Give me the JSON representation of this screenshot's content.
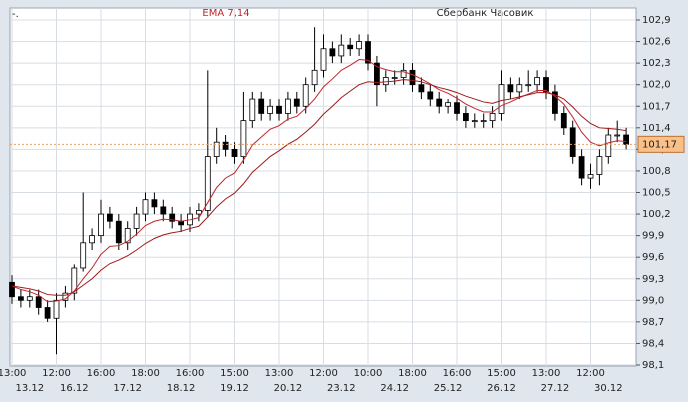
{
  "chart_data": {
    "type": "candlestick",
    "corner_text": "-.",
    "title": "EMA 7,14",
    "subtitle": "Сбербанк Часовик",
    "categories": [
      "13:00",
      null,
      null,
      null,
      null,
      "12:00",
      null,
      null,
      null,
      null,
      "16:00",
      null,
      null,
      null,
      null,
      "18:00",
      null,
      null,
      null,
      null,
      "16:00",
      null,
      null,
      null,
      null,
      "15:00",
      null,
      null,
      null,
      null,
      "13:00",
      null,
      null,
      null,
      null,
      "12:00",
      null,
      null,
      null,
      null,
      "10:00",
      null,
      null,
      null,
      null,
      "18:00",
      null,
      null,
      null,
      null,
      "16:00",
      null,
      null,
      null,
      null,
      "15:00",
      null,
      null,
      null,
      null,
      "13:00",
      null,
      null,
      null,
      null,
      "12:00",
      null,
      null,
      null,
      null
    ],
    "dates": [
      null,
      null,
      "13.12",
      null,
      null,
      null,
      null,
      "16.12",
      null,
      null,
      null,
      null,
      null,
      "17.12",
      null,
      null,
      null,
      null,
      null,
      "18.12",
      null,
      null,
      null,
      null,
      null,
      "19.12",
      null,
      null,
      null,
      null,
      null,
      "20.12",
      null,
      null,
      null,
      null,
      null,
      "23.12",
      null,
      null,
      null,
      null,
      null,
      "24.12",
      null,
      null,
      null,
      null,
      null,
      "25.12",
      null,
      null,
      null,
      null,
      null,
      "26.12",
      null,
      null,
      null,
      null,
      null,
      "27.12",
      null,
      null,
      null,
      null,
      null,
      "30.12",
      null,
      null
    ],
    "open": [
      99.25,
      99.05,
      99.0,
      99.05,
      98.9,
      98.75,
      99.0,
      99.1,
      99.45,
      99.8,
      99.9,
      100.2,
      100.1,
      99.8,
      100.0,
      100.2,
      100.4,
      100.3,
      100.2,
      100.1,
      100.05,
      100.2,
      100.25,
      101.0,
      101.2,
      101.1,
      101.0,
      101.5,
      101.8,
      101.6,
      101.7,
      101.6,
      101.8,
      101.7,
      102.0,
      102.2,
      102.5,
      102.4,
      102.55,
      102.5,
      102.6,
      102.3,
      102.0,
      102.1,
      102.1,
      102.2,
      102.0,
      101.9,
      101.8,
      101.7,
      101.75,
      101.6,
      101.5,
      101.5,
      101.5,
      101.6,
      102.0,
      101.9,
      102.0,
      102.0,
      102.1,
      101.9,
      101.6,
      101.4,
      101.0,
      100.7,
      100.75,
      101.0,
      101.3,
      101.3
    ],
    "high": [
      99.35,
      99.15,
      99.15,
      99.15,
      99.0,
      99.1,
      99.2,
      99.5,
      100.5,
      100.0,
      100.4,
      100.3,
      100.2,
      100.1,
      100.3,
      100.5,
      100.5,
      100.4,
      100.3,
      100.2,
      100.3,
      100.35,
      102.2,
      101.4,
      101.3,
      101.2,
      101.9,
      101.9,
      101.9,
      101.8,
      101.8,
      101.9,
      101.9,
      102.1,
      102.8,
      102.7,
      102.6,
      102.7,
      102.65,
      102.7,
      102.7,
      102.4,
      102.2,
      102.2,
      102.3,
      102.3,
      102.1,
      102.0,
      101.9,
      101.8,
      101.85,
      101.7,
      101.6,
      101.6,
      101.7,
      102.2,
      102.1,
      102.1,
      102.2,
      102.2,
      102.2,
      102.0,
      101.7,
      101.5,
      101.1,
      100.9,
      101.1,
      101.4,
      101.5,
      101.4
    ],
    "low": [
      98.95,
      98.9,
      98.9,
      98.8,
      98.7,
      98.25,
      98.9,
      99.0,
      99.4,
      99.7,
      99.8,
      100.0,
      99.7,
      99.7,
      99.9,
      100.1,
      100.2,
      100.1,
      100.0,
      99.95,
      99.95,
      100.1,
      100.15,
      100.9,
      101.0,
      100.9,
      100.9,
      101.4,
      101.5,
      101.5,
      101.5,
      101.5,
      101.6,
      101.6,
      101.9,
      102.1,
      102.3,
      102.3,
      102.4,
      102.4,
      102.2,
      101.7,
      101.9,
      102.0,
      102.0,
      101.9,
      101.8,
      101.7,
      101.6,
      101.6,
      101.5,
      101.4,
      101.4,
      101.4,
      101.4,
      101.5,
      101.8,
      101.8,
      101.9,
      101.9,
      101.8,
      101.5,
      101.3,
      100.9,
      100.6,
      100.55,
      100.6,
      100.9,
      101.2,
      101.1
    ],
    "close": [
      99.05,
      99.0,
      99.05,
      98.9,
      98.75,
      99.0,
      99.1,
      99.45,
      99.8,
      99.9,
      100.2,
      100.1,
      99.8,
      100.0,
      100.2,
      100.4,
      100.3,
      100.2,
      100.1,
      100.05,
      100.2,
      100.25,
      101.0,
      101.2,
      101.1,
      101.0,
      101.5,
      101.8,
      101.6,
      101.7,
      101.6,
      101.8,
      101.7,
      102.0,
      102.2,
      102.5,
      102.4,
      102.55,
      102.5,
      102.6,
      102.3,
      102.0,
      102.1,
      102.1,
      102.2,
      102.0,
      101.9,
      101.8,
      101.7,
      101.75,
      101.6,
      101.5,
      101.5,
      101.5,
      101.6,
      102.0,
      101.9,
      102.0,
      102.0,
      102.1,
      101.9,
      101.6,
      101.4,
      101.0,
      100.7,
      100.75,
      101.0,
      101.3,
      101.3,
      101.17
    ],
    "series": [
      {
        "color": "#c0262a",
        "values": [
          99.2,
          99.15,
          99.12,
          99.07,
          98.98,
          98.99,
          99.02,
          99.13,
          99.3,
          99.45,
          99.64,
          99.75,
          99.76,
          99.82,
          99.92,
          100.04,
          100.1,
          100.13,
          100.12,
          100.1,
          100.12,
          100.15,
          100.36,
          100.57,
          100.7,
          100.77,
          100.95,
          101.16,
          101.27,
          101.38,
          101.43,
          101.52,
          101.56,
          101.67,
          101.8,
          101.97,
          102.08,
          102.2,
          102.27,
          102.35,
          102.34,
          102.25,
          102.21,
          102.18,
          102.18,
          102.14,
          102.08,
          102.01,
          101.93,
          101.88,
          101.81,
          101.73,
          101.67,
          101.62,
          101.62,
          101.71,
          101.76,
          101.82,
          101.87,
          101.92,
          101.92,
          101.84,
          101.73,
          101.55,
          101.34,
          101.2,
          101.15,
          101.19,
          101.22,
          101.21
        ]
      },
      {
        "color": "#a01818",
        "values": [
          99.2,
          99.18,
          99.16,
          99.13,
          99.08,
          99.07,
          99.07,
          99.12,
          99.21,
          99.3,
          99.42,
          99.51,
          99.56,
          99.62,
          99.7,
          99.79,
          99.86,
          99.91,
          99.94,
          99.96,
          100.0,
          100.03,
          100.16,
          100.3,
          100.41,
          100.49,
          100.62,
          100.78,
          100.89,
          101.0,
          101.08,
          101.17,
          101.24,
          101.34,
          101.45,
          101.59,
          101.7,
          101.82,
          101.91,
          102.0,
          102.04,
          102.03,
          102.04,
          102.05,
          102.07,
          102.06,
          102.04,
          102.0,
          101.96,
          101.93,
          101.89,
          101.84,
          101.8,
          101.76,
          101.74,
          101.78,
          101.8,
          101.83,
          101.86,
          101.89,
          101.89,
          101.86,
          101.8,
          101.69,
          101.56,
          101.46,
          101.4,
          101.39,
          101.38,
          101.36
        ]
      }
    ],
    "last_price": {
      "value": 101.17,
      "label": "101,17"
    },
    "ylim": [
      98.1,
      102.9
    ],
    "yticks": [
      {
        "value": 102.9,
        "label": "102,9"
      },
      {
        "value": 102.6,
        "label": "102,6"
      },
      {
        "value": 102.3,
        "label": "102,3"
      },
      {
        "value": 102.0,
        "label": "102,0"
      },
      {
        "value": 101.7,
        "label": "101,7"
      },
      {
        "value": 101.4,
        "label": "101,4"
      },
      {
        "value": 101.1,
        "label": "101,1"
      },
      {
        "value": 100.8,
        "label": "100,8"
      },
      {
        "value": 100.5,
        "label": "100,5"
      },
      {
        "value": 100.2,
        "label": "100,2"
      },
      {
        "value": 99.9,
        "label": "99,9"
      },
      {
        "value": 99.6,
        "label": "99,6"
      },
      {
        "value": 99.3,
        "label": "99,3"
      },
      {
        "value": 99.0,
        "label": "99,0"
      },
      {
        "value": 98.7,
        "label": "98,7"
      },
      {
        "value": 98.4,
        "label": "98,4"
      },
      {
        "value": 98.1,
        "label": "98,1"
      }
    ],
    "grid": true
  }
}
